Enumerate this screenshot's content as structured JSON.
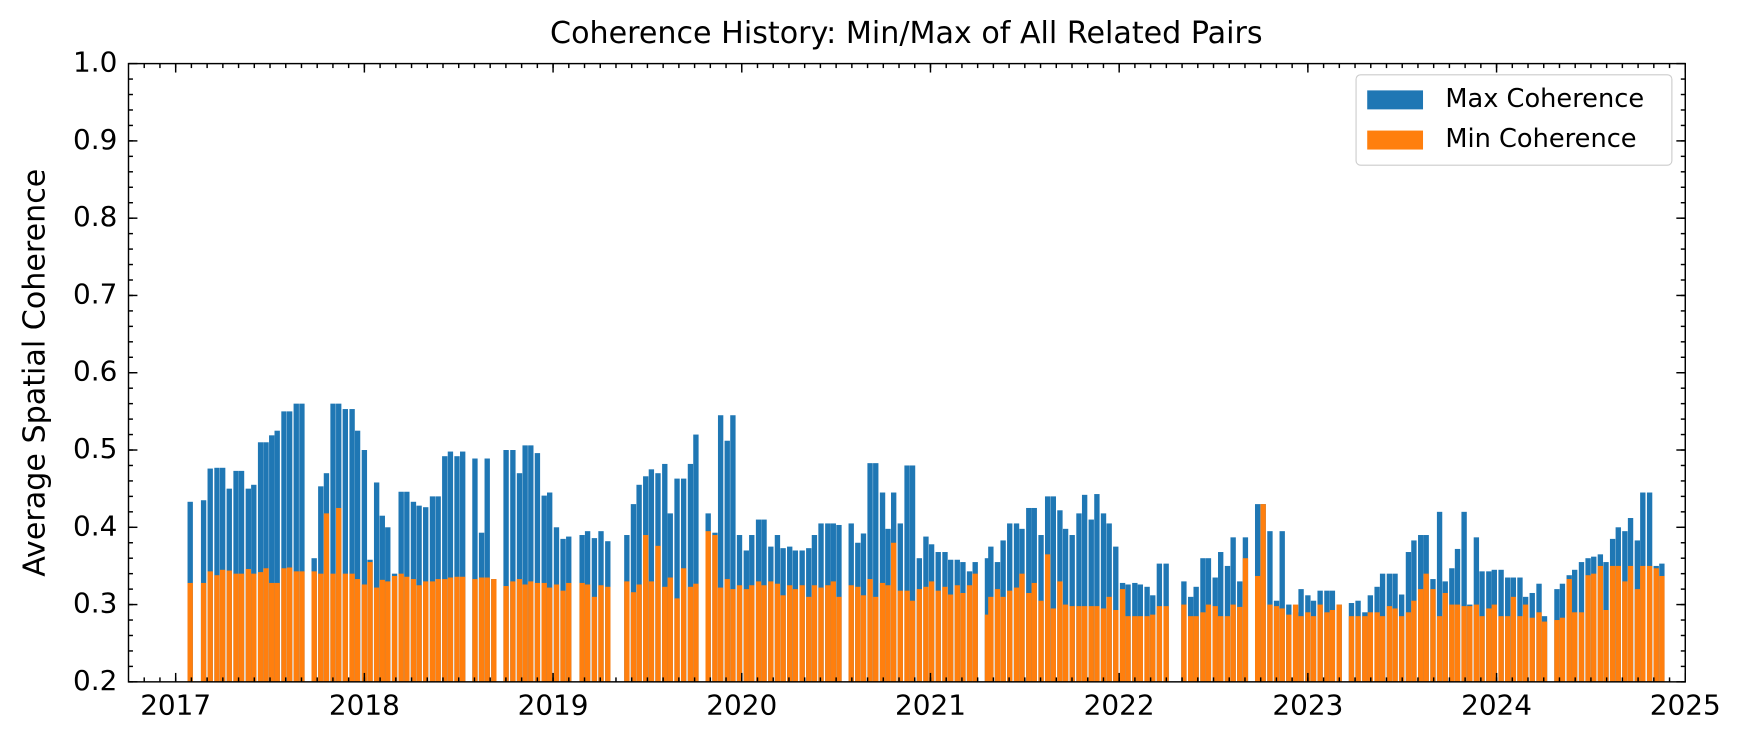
{
  "chart_data": {
    "type": "bar",
    "title": "Coherence History: Min/Max of All Related Pairs",
    "y_label": "Average Spatial Coherence",
    "xlim": [
      2016.75,
      2025
    ],
    "xticks": [
      2017,
      2018,
      2019,
      2020,
      2021,
      2022,
      2023,
      2024,
      2025
    ],
    "ylim": [
      0.2,
      1.0
    ],
    "yticks": [
      0.2,
      0.3,
      0.4,
      0.5,
      0.6,
      0.7,
      0.8,
      0.9,
      {
        "value": 1.0,
        "label": "1.0"
      }
    ],
    "legend": "upper right",
    "x": [
      2017.077,
      2017.148,
      2017.183,
      2017.219,
      2017.249,
      2017.284,
      2017.32,
      2017.349,
      2017.385,
      2017.414,
      2017.45,
      2017.479,
      2017.509,
      2017.538,
      2017.574,
      2017.604,
      2017.639,
      2017.669,
      2017.734,
      2017.769,
      2017.799,
      2017.834,
      2017.864,
      2017.899,
      2017.935,
      2017.964,
      2018.0,
      2018.03,
      2018.065,
      2018.095,
      2018.124,
      2018.16,
      2018.195,
      2018.225,
      2018.26,
      2018.29,
      2018.325,
      2018.361,
      2018.391,
      2018.426,
      2018.456,
      2018.491,
      2018.521,
      2018.586,
      2018.621,
      2018.651,
      2018.686,
      2018.751,
      2018.787,
      2018.822,
      2018.852,
      2018.882,
      2018.917,
      2018.953,
      2018.982,
      2019.018,
      2019.053,
      2019.083,
      2019.154,
      2019.183,
      2019.219,
      2019.254,
      2019.29,
      2019.391,
      2019.426,
      2019.456,
      2019.491,
      2019.521,
      2019.556,
      2019.592,
      2019.621,
      2019.657,
      2019.692,
      2019.728,
      2019.757,
      2019.822,
      2019.858,
      2019.888,
      2019.923,
      2019.953,
      2019.988,
      2020.024,
      2020.053,
      2020.089,
      2020.118,
      2020.154,
      2020.189,
      2020.219,
      2020.254,
      2020.284,
      2020.32,
      2020.355,
      2020.385,
      2020.42,
      2020.456,
      2020.485,
      2020.515,
      2020.58,
      2020.615,
      2020.645,
      2020.68,
      2020.71,
      2020.746,
      2020.775,
      2020.805,
      2020.84,
      2020.876,
      2020.905,
      2020.941,
      2020.976,
      2021.006,
      2021.041,
      2021.077,
      2021.107,
      2021.142,
      2021.172,
      2021.207,
      2021.237,
      2021.302,
      2021.32,
      2021.355,
      2021.385,
      2021.42,
      2021.456,
      2021.485,
      2021.521,
      2021.55,
      2021.586,
      2021.621,
      2021.651,
      2021.686,
      2021.716,
      2021.751,
      2021.787,
      2021.817,
      2021.852,
      2021.882,
      2021.917,
      2021.947,
      2021.982,
      2022.018,
      2022.047,
      2022.083,
      2022.112,
      2022.148,
      2022.178,
      2022.213,
      2022.249,
      2022.343,
      2022.379,
      2022.408,
      2022.444,
      2022.473,
      2022.509,
      2022.538,
      2022.574,
      2022.604,
      2022.639,
      2022.669,
      2022.734,
      2022.763,
      2022.799,
      2022.834,
      2022.864,
      2022.899,
      2022.935,
      2022.964,
      2023.0,
      2023.03,
      2023.065,
      2023.101,
      2023.13,
      2023.166,
      2023.231,
      2023.266,
      2023.302,
      2023.331,
      2023.367,
      2023.396,
      2023.432,
      2023.462,
      2023.497,
      2023.533,
      2023.562,
      2023.598,
      2023.627,
      2023.663,
      2023.698,
      2023.728,
      2023.763,
      2023.793,
      2023.828,
      2023.858,
      2023.893,
      2023.923,
      2023.959,
      2023.988,
      2024.024,
      2024.059,
      2024.089,
      2024.124,
      2024.154,
      2024.189,
      2024.225,
      2024.254,
      2024.32,
      2024.349,
      2024.385,
      2024.414,
      2024.45,
      2024.485,
      2024.515,
      2024.55,
      2024.58,
      2024.615,
      2024.645,
      2024.68,
      2024.71,
      2024.746,
      2024.775,
      2024.811,
      2024.846,
      2024.876
    ],
    "series": [
      {
        "name": "Max Coherence",
        "color": "#1f77b4",
        "values": [
          0.433,
          0.435,
          0.476,
          0.477,
          0.477,
          0.45,
          0.473,
          0.473,
          0.45,
          0.455,
          0.51,
          0.51,
          0.519,
          0.525,
          0.55,
          0.55,
          0.56,
          0.56,
          0.36,
          0.453,
          0.47,
          0.56,
          0.56,
          0.553,
          0.553,
          0.525,
          0.5,
          0.358,
          0.458,
          0.415,
          0.4,
          0.34,
          0.446,
          0.446,
          0.433,
          0.428,
          0.426,
          0.44,
          0.44,
          0.492,
          0.498,
          0.492,
          0.498,
          0.489,
          0.393,
          0.489,
          0.333,
          0.5,
          0.5,
          0.47,
          0.506,
          0.506,
          0.496,
          0.441,
          0.445,
          0.4,
          0.385,
          0.388,
          0.39,
          0.395,
          0.386,
          0.395,
          0.382,
          0.39,
          0.43,
          0.455,
          0.466,
          0.475,
          0.47,
          0.482,
          0.418,
          0.463,
          0.463,
          0.482,
          0.52,
          0.418,
          0.393,
          0.545,
          0.512,
          0.545,
          0.39,
          0.37,
          0.39,
          0.41,
          0.41,
          0.375,
          0.39,
          0.373,
          0.375,
          0.37,
          0.37,
          0.373,
          0.39,
          0.405,
          0.405,
          0.405,
          0.403,
          0.405,
          0.38,
          0.392,
          0.483,
          0.483,
          0.445,
          0.398,
          0.445,
          0.405,
          0.48,
          0.48,
          0.36,
          0.388,
          0.378,
          0.368,
          0.368,
          0.358,
          0.358,
          0.355,
          0.343,
          0.355,
          0.36,
          0.375,
          0.355,
          0.383,
          0.405,
          0.405,
          0.398,
          0.425,
          0.425,
          0.39,
          0.44,
          0.44,
          0.422,
          0.398,
          0.39,
          0.418,
          0.442,
          0.41,
          0.443,
          0.418,
          0.405,
          0.375,
          0.328,
          0.326,
          0.328,
          0.326,
          0.323,
          0.312,
          0.353,
          0.353,
          0.33,
          0.31,
          0.323,
          0.36,
          0.36,
          0.335,
          0.368,
          0.35,
          0.387,
          0.33,
          0.387,
          0.43,
          0.43,
          0.395,
          0.305,
          0.395,
          0.3,
          0.29,
          0.32,
          0.312,
          0.305,
          0.318,
          0.318,
          0.318,
          0.3,
          0.302,
          0.305,
          0.29,
          0.312,
          0.323,
          0.34,
          0.34,
          0.34,
          0.313,
          0.368,
          0.383,
          0.39,
          0.39,
          0.333,
          0.42,
          0.33,
          0.347,
          0.372,
          0.42,
          0.3,
          0.387,
          0.343,
          0.343,
          0.345,
          0.345,
          0.335,
          0.335,
          0.335,
          0.31,
          0.315,
          0.327,
          0.285,
          0.32,
          0.327,
          0.338,
          0.345,
          0.355,
          0.36,
          0.362,
          0.365,
          0.355,
          0.385,
          0.4,
          0.395,
          0.412,
          0.383,
          0.445,
          0.445,
          0.35,
          0.353
        ]
      },
      {
        "name": "Min Coherence",
        "color": "#ff7f0e",
        "values": [
          0.328,
          0.328,
          0.343,
          0.338,
          0.345,
          0.344,
          0.34,
          0.34,
          0.346,
          0.34,
          0.342,
          0.347,
          0.328,
          0.328,
          0.347,
          0.348,
          0.343,
          0.343,
          0.343,
          0.34,
          0.418,
          0.34,
          0.425,
          0.34,
          0.34,
          0.333,
          0.326,
          0.355,
          0.322,
          0.332,
          0.33,
          0.337,
          0.34,
          0.336,
          0.333,
          0.325,
          0.33,
          0.33,
          0.333,
          0.333,
          0.335,
          0.336,
          0.336,
          0.333,
          0.335,
          0.335,
          0.333,
          0.324,
          0.33,
          0.333,
          0.326,
          0.33,
          0.328,
          0.328,
          0.322,
          0.326,
          0.318,
          0.328,
          0.328,
          0.326,
          0.31,
          0.325,
          0.323,
          0.33,
          0.316,
          0.326,
          0.39,
          0.33,
          0.376,
          0.323,
          0.335,
          0.308,
          0.347,
          0.323,
          0.327,
          0.395,
          0.39,
          0.322,
          0.333,
          0.32,
          0.325,
          0.32,
          0.325,
          0.33,
          0.325,
          0.33,
          0.327,
          0.312,
          0.325,
          0.32,
          0.325,
          0.31,
          0.325,
          0.322,
          0.325,
          0.33,
          0.31,
          0.325,
          0.323,
          0.312,
          0.333,
          0.31,
          0.328,
          0.325,
          0.38,
          0.318,
          0.318,
          0.305,
          0.32,
          0.323,
          0.33,
          0.318,
          0.323,
          0.313,
          0.325,
          0.315,
          0.325,
          0.34,
          0.287,
          0.31,
          0.32,
          0.31,
          0.318,
          0.322,
          0.34,
          0.315,
          0.328,
          0.305,
          0.365,
          0.295,
          0.33,
          0.3,
          0.298,
          0.298,
          0.298,
          0.298,
          0.298,
          0.295,
          0.31,
          0.293,
          0.32,
          0.285,
          0.285,
          0.285,
          0.285,
          0.287,
          0.298,
          0.298,
          0.3,
          0.285,
          0.285,
          0.29,
          0.3,
          0.298,
          0.285,
          0.285,
          0.3,
          0.297,
          0.36,
          0.337,
          0.43,
          0.3,
          0.298,
          0.295,
          0.287,
          0.3,
          0.285,
          0.29,
          0.285,
          0.3,
          0.29,
          0.293,
          0.3,
          0.285,
          0.285,
          0.285,
          0.29,
          0.29,
          0.285,
          0.298,
          0.295,
          0.285,
          0.29,
          0.305,
          0.32,
          0.34,
          0.32,
          0.285,
          0.315,
          0.3,
          0.3,
          0.298,
          0.298,
          0.3,
          0.285,
          0.295,
          0.3,
          0.285,
          0.285,
          0.31,
          0.285,
          0.3,
          0.283,
          0.29,
          0.278,
          0.28,
          0.283,
          0.333,
          0.29,
          0.29,
          0.338,
          0.34,
          0.35,
          0.293,
          0.35,
          0.35,
          0.33,
          0.35,
          0.32,
          0.35,
          0.35,
          0.347,
          0.337
        ]
      }
    ]
  }
}
